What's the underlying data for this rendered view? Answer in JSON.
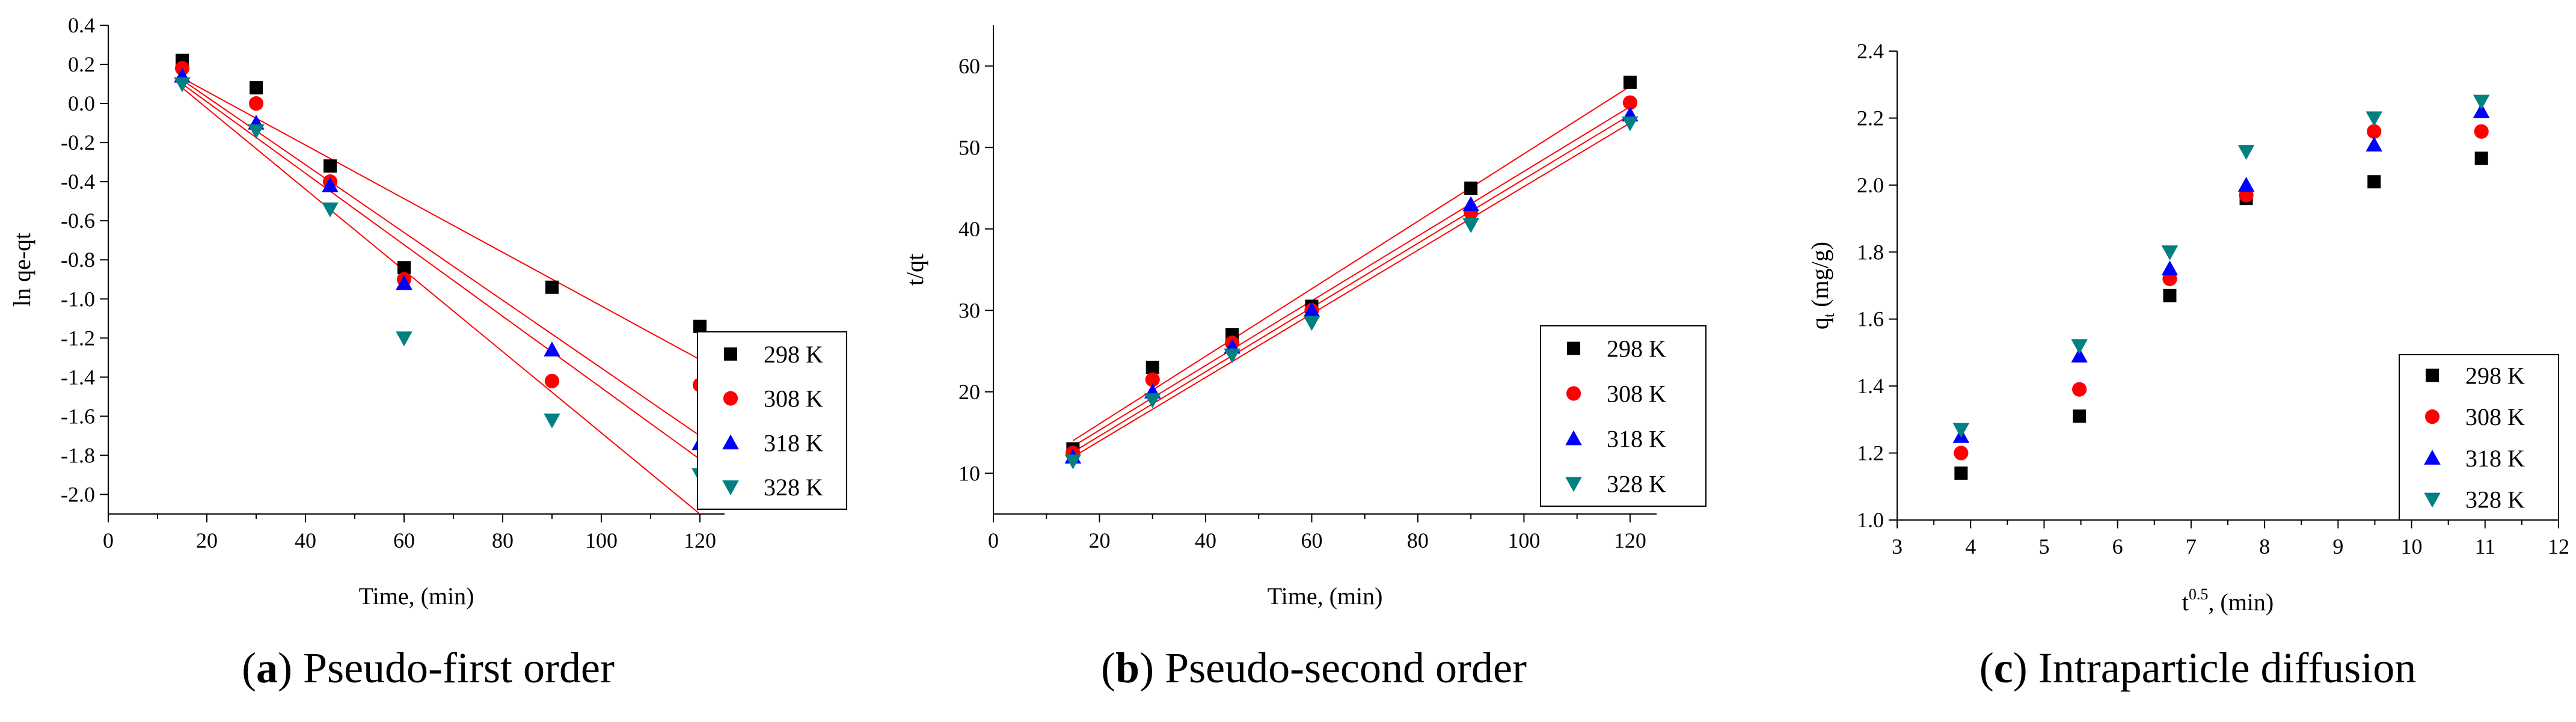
{
  "chart_data": [
    {
      "type": "scatter",
      "panel": "(a)",
      "caption_letter": "a",
      "caption_text": "Pseudo-first order",
      "xlabel": "Time, (min)",
      "ylabel": "ln qe-qt",
      "xlim": [
        0,
        125
      ],
      "ylim": [
        -2.1,
        0.4
      ],
      "xticks": [
        0,
        20,
        40,
        60,
        80,
        100,
        120
      ],
      "yticks": [
        0.4,
        0.2,
        0.0,
        -0.2,
        -0.4,
        -0.6,
        -0.8,
        -1.0,
        -1.2,
        -1.4,
        -1.6,
        -1.8,
        -2.0
      ],
      "ytick_labels": [
        "0.4",
        "0.2",
        "0.0",
        "-0.2",
        "-0.4",
        "-0.6",
        "-0.8",
        "-1.0",
        "-1.2",
        "-1.4",
        "-1.6",
        "-1.8",
        "-2.0"
      ],
      "xtick_labels": [
        "0",
        "20",
        "40",
        "60",
        "80",
        "100",
        "120"
      ],
      "legend_position": "right",
      "series": [
        {
          "name": "298 K",
          "marker": "square",
          "color": "#000000",
          "x": [
            15,
            30,
            45,
            60,
            90,
            120
          ],
          "y": [
            0.22,
            0.08,
            -0.32,
            -0.84,
            -0.94,
            -1.14
          ],
          "fit": [
            [
              15,
              0.13
            ],
            [
              120,
              -1.31
            ]
          ]
        },
        {
          "name": "308 K",
          "marker": "circle",
          "color": "#ff0000",
          "x": [
            15,
            30,
            45,
            60,
            90,
            120
          ],
          "y": [
            0.18,
            0.0,
            -0.4,
            -0.9,
            -1.42,
            -1.44
          ],
          "fit": [
            [
              15,
              0.12
            ],
            [
              120,
              -1.7
            ]
          ]
        },
        {
          "name": "318 K",
          "marker": "triangle-up",
          "color": "#0000ff",
          "x": [
            15,
            30,
            45,
            60,
            90,
            120
          ],
          "y": [
            0.14,
            -0.1,
            -0.42,
            -0.92,
            -1.26,
            -1.74
          ],
          "fit": [
            [
              15,
              0.1
            ],
            [
              120,
              -1.82
            ]
          ]
        },
        {
          "name": "328 K",
          "marker": "triangle-down",
          "color": "#008080",
          "x": [
            15,
            30,
            45,
            60,
            90,
            120
          ],
          "y": [
            0.1,
            -0.14,
            -0.54,
            -1.2,
            -1.62,
            -1.9
          ],
          "fit": [
            [
              15,
              0.08
            ],
            [
              120,
              -2.1
            ]
          ]
        }
      ]
    },
    {
      "type": "scatter",
      "panel": "(b)",
      "caption_letter": "b",
      "caption_text": "Pseudo-second order",
      "xlabel": "Time, (min)",
      "ylabel": "t/qt",
      "xlim": [
        0,
        125
      ],
      "ylim": [
        5,
        65
      ],
      "xticks": [
        0,
        20,
        40,
        60,
        80,
        100,
        120
      ],
      "yticks": [
        10,
        20,
        30,
        40,
        50,
        60
      ],
      "ytick_labels": [
        "10",
        "20",
        "30",
        "40",
        "50",
        "60"
      ],
      "xtick_labels": [
        "0",
        "20",
        "40",
        "60",
        "80",
        "100",
        "120"
      ],
      "legend_position": "right",
      "series": [
        {
          "name": "298 K",
          "marker": "square",
          "color": "#000000",
          "x": [
            15,
            30,
            45,
            60,
            90,
            120
          ],
          "y": [
            13.0,
            23.0,
            27.0,
            30.5,
            45.0,
            58.0
          ],
          "fit": [
            [
              15,
              14.0
            ],
            [
              120,
              57.5
            ]
          ]
        },
        {
          "name": "308 K",
          "marker": "circle",
          "color": "#ff0000",
          "x": [
            15,
            30,
            45,
            60,
            90,
            120
          ],
          "y": [
            12.5,
            21.5,
            26.0,
            30.0,
            42.0,
            55.5
          ],
          "fit": [
            [
              15,
              13.3
            ],
            [
              120,
              55.0
            ]
          ]
        },
        {
          "name": "318 K",
          "marker": "triangle-up",
          "color": "#0000ff",
          "x": [
            15,
            30,
            45,
            60,
            90,
            120
          ],
          "y": [
            12.0,
            20.0,
            25.5,
            30.0,
            43.0,
            54.0
          ],
          "fit": [
            [
              15,
              12.6
            ],
            [
              120,
              54.0
            ]
          ]
        },
        {
          "name": "328 K",
          "marker": "triangle-down",
          "color": "#008080",
          "x": [
            15,
            30,
            45,
            60,
            90,
            120
          ],
          "y": [
            11.5,
            19.0,
            24.5,
            28.5,
            40.5,
            53.0
          ],
          "fit": [
            [
              15,
              12.0
            ],
            [
              120,
              53.0
            ]
          ]
        }
      ]
    },
    {
      "type": "scatter",
      "panel": "(c)",
      "caption_letter": "c",
      "caption_text": "Intraparticle diffusion",
      "xlabel_main": "t",
      "xlabel_sup": "0.5",
      "xlabel_rest": ", (min)",
      "ylabel_main": "q",
      "ylabel_sub": "t",
      "ylabel_rest": " (mg/g)",
      "xlim": [
        3,
        12
      ],
      "ylim": [
        1.0,
        2.4
      ],
      "xticks": [
        3,
        4,
        5,
        6,
        7,
        8,
        9,
        10,
        11,
        12
      ],
      "yticks": [
        1.0,
        1.2,
        1.4,
        1.6,
        1.8,
        2.0,
        2.2,
        2.4
      ],
      "ytick_labels": [
        "1.0",
        "1.2",
        "1.4",
        "1.6",
        "1.8",
        "2.0",
        "2.2",
        "2.4"
      ],
      "xtick_labels": [
        "3",
        "4",
        "5",
        "6",
        "7",
        "8",
        "9",
        "10",
        "11",
        "12"
      ],
      "legend_position": "bottom-right",
      "series": [
        {
          "name": "298 K",
          "marker": "square",
          "color": "#000000",
          "x": [
            3.87,
            5.48,
            6.71,
            7.75,
            9.49,
            10.95
          ],
          "y": [
            1.14,
            1.31,
            1.67,
            1.96,
            2.01,
            2.08
          ]
        },
        {
          "name": "308 K",
          "marker": "circle",
          "color": "#ff0000",
          "x": [
            3.87,
            5.48,
            6.71,
            7.75,
            9.49,
            10.95
          ],
          "y": [
            1.2,
            1.39,
            1.72,
            1.97,
            2.16,
            2.16
          ]
        },
        {
          "name": "318 K",
          "marker": "triangle-up",
          "color": "#0000ff",
          "x": [
            3.87,
            5.48,
            6.71,
            7.75,
            9.49,
            10.95
          ],
          "y": [
            1.25,
            1.49,
            1.75,
            2.0,
            2.12,
            2.22
          ]
        },
        {
          "name": "328 K",
          "marker": "triangle-down",
          "color": "#008080",
          "x": [
            3.87,
            5.48,
            6.71,
            7.75,
            9.49,
            10.95
          ],
          "y": [
            1.27,
            1.52,
            1.8,
            2.1,
            2.2,
            2.25
          ]
        }
      ]
    }
  ]
}
